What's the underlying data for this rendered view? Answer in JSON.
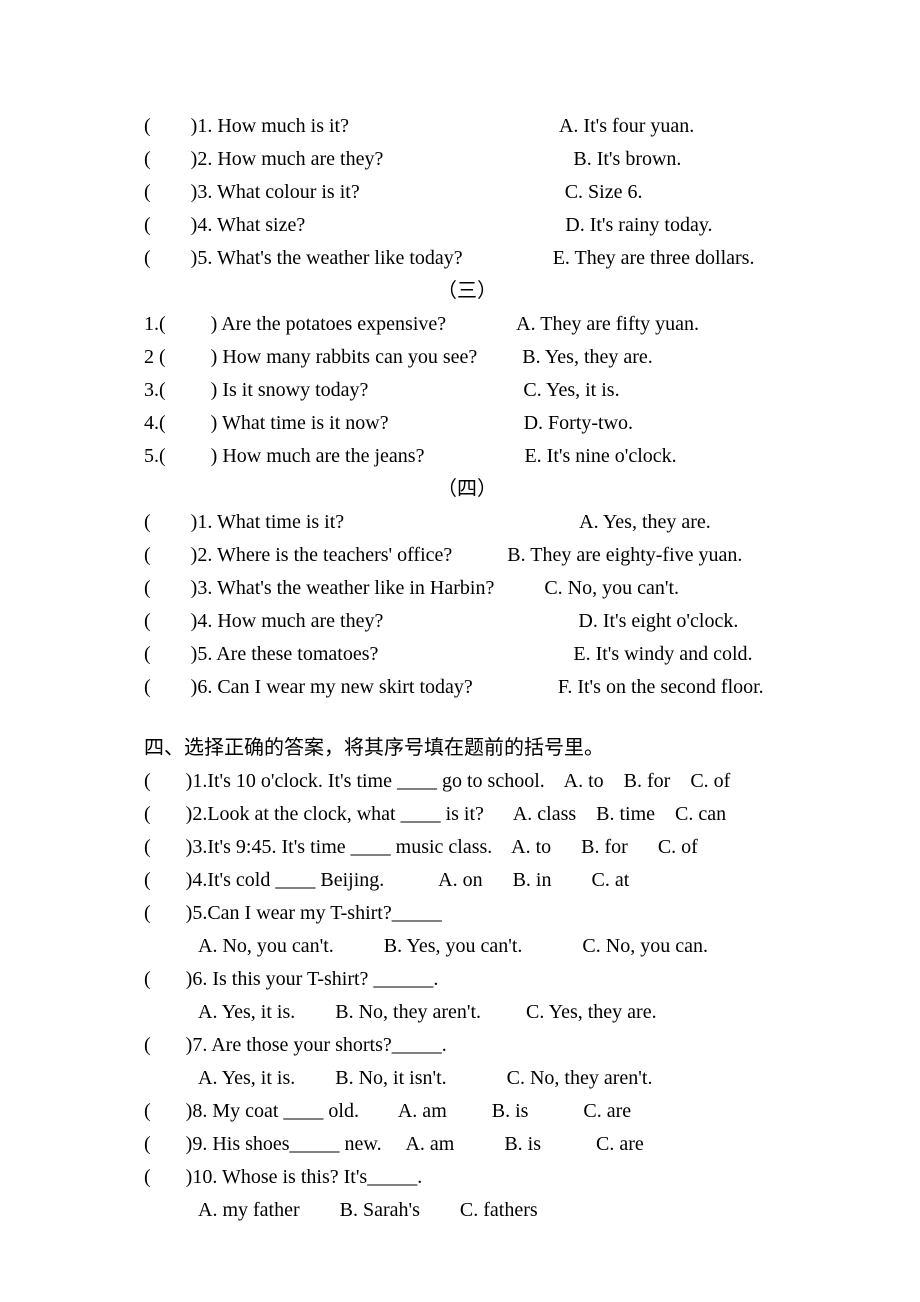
{
  "blank": "(        )",
  "blank_num_pre": "(         ) ",
  "section2": {
    "rows": [
      {
        "q": "1. How much is it?",
        "a": "A. It's four yuan.",
        "gap": "                                          "
      },
      {
        "q": "2. How much are they?",
        "a": "B. It's brown.",
        "gap": "                                      "
      },
      {
        "q": "3. What colour is it?",
        "a": "C. Size 6.",
        "gap": "                                         "
      },
      {
        "q": "4. What size?",
        "a": "D. It's rainy today.",
        "gap": "                                                    "
      },
      {
        "q": "5. What's the weather like today?",
        "a": "E. They are three dollars.",
        "gap": "                  "
      }
    ]
  },
  "section3_label": "（三）",
  "section3": {
    "rows": [
      {
        "num": "1.",
        "q": "Are the potatoes expensive?",
        "a": "A. They are fifty yuan.",
        "gap": "              "
      },
      {
        "num": "2 ",
        "q": "How many rabbits can you see?",
        "a": "B. Yes, they are.",
        "gap": "         "
      },
      {
        "num": "3.",
        "q": "Is it snowy today?",
        "a": "C. Yes, it is.",
        "gap": "                               "
      },
      {
        "num": "4.",
        "q": "What time is it now?",
        "a": "D. Forty-two.",
        "gap": "                           "
      },
      {
        "num": "5.",
        "q": "How much are the jeans?",
        "a": "E. It's nine o'clock.",
        "gap": "                    "
      }
    ]
  },
  "section4_label": "（四）",
  "section4": {
    "rows": [
      {
        "q": "1. What time is it?",
        "a": "A. Yes, they are.",
        "gap": "                                               "
      },
      {
        "q": "2. Where is the teachers' office?",
        "a": "B. They are eighty-five yuan.",
        "gap": "           "
      },
      {
        "q": "3. What's the weather like in Harbin?",
        "a": "C. No, you can't.",
        "gap": "          "
      },
      {
        "q": "4. How much are they?",
        "a": "D. It's eight o'clock.",
        "gap": "                                       "
      },
      {
        "q": "5. Are these tomatoes?",
        "a": "E. It's windy and cold.",
        "gap": "                                       "
      },
      {
        "q": "6. Can I wear my new skirt today?",
        "a": "F. It's on the second floor.",
        "gap": "                 "
      }
    ]
  },
  "mc_heading": "四、选择正确的答案，将其序号填在题前的括号里。",
  "mc_blank": "(       )",
  "mc": [
    {
      "text": "1.It's 10 o'clock. It's time ____ go to school.    A. to    B. for    C. of"
    },
    {
      "text": "2.Look at the clock, what ____ is it?      A. class    B. time    C. can"
    },
    {
      "text": "3.It's 9:45. It's time ____ music class.    A. to      B. for      C. of"
    },
    {
      "text": "4.It's cold ____ Beijing.           A. on      B. in        C. at"
    },
    {
      "text": "5.Can I wear my T-shirt?_____"
    },
    {
      "indent": true,
      "text": "A. No, you can't.          B. Yes, you can't.            C. No, you can."
    },
    {
      "text": "6. Is this your T-shirt? ______."
    },
    {
      "indent": true,
      "text": "A. Yes, it is.        B. No, they aren't.         C. Yes, they are."
    },
    {
      "text": "7. Are those your shorts?_____."
    },
    {
      "indent": true,
      "text": "A. Yes, it is.        B. No, it isn't.            C. No, they aren't."
    },
    {
      "text": "8. My coat ____ old.        A. am         B. is           C. are"
    },
    {
      "text": "9. His shoes_____ new.     A. am          B. is           C. are"
    },
    {
      "text": "10. Whose is this? It's_____."
    },
    {
      "indent": true,
      "text": "A. my father        B. Sarah's        C. fathers"
    }
  ]
}
